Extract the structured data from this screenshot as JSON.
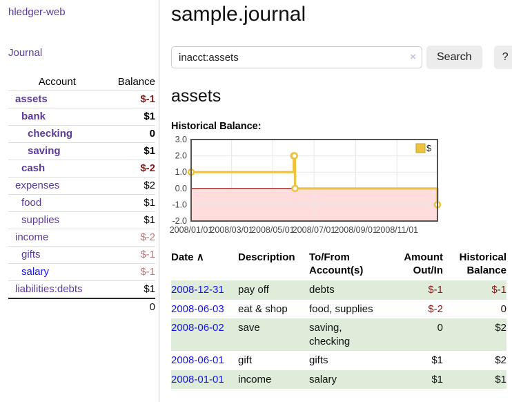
{
  "app": {
    "brand": "hledger-web",
    "nav_journal": "Journal"
  },
  "sidebar": {
    "columns": {
      "account": "Account",
      "balance": "Balance"
    },
    "accounts": [
      {
        "name": "assets",
        "depth": 1,
        "bold": true,
        "link_style": "purple",
        "balance": "$-1",
        "balance_style": "neg-strong"
      },
      {
        "name": "bank",
        "depth": 2,
        "bold": true,
        "link_style": "purple",
        "balance": "$1",
        "balance_style": ""
      },
      {
        "name": "checking",
        "depth": 3,
        "bold": true,
        "link_style": "purple",
        "balance": "0",
        "balance_style": ""
      },
      {
        "name": "saving",
        "depth": 3,
        "bold": true,
        "link_style": "purple",
        "balance": "$1",
        "balance_style": ""
      },
      {
        "name": "cash",
        "depth": 2,
        "bold": true,
        "link_style": "purple",
        "balance": "$-2",
        "balance_style": "neg-strong"
      },
      {
        "name": "expenses",
        "depth": 1,
        "bold": false,
        "link_style": "purple",
        "balance": "$2",
        "balance_style": ""
      },
      {
        "name": "food",
        "depth": 2,
        "bold": false,
        "link_style": "purple",
        "balance": "$1",
        "balance_style": ""
      },
      {
        "name": "supplies",
        "depth": 2,
        "bold": false,
        "link_style": "purple",
        "balance": "$1",
        "balance_style": ""
      },
      {
        "name": "income",
        "depth": 1,
        "bold": false,
        "link_style": "purple",
        "balance": "$-2",
        "balance_style": "neg-soft"
      },
      {
        "name": "gifts",
        "depth": 2,
        "bold": false,
        "link_style": "purple",
        "balance": "$-1",
        "balance_style": "neg-soft"
      },
      {
        "name": "salary",
        "depth": 2,
        "bold": false,
        "link_style": "blue",
        "balance": "$-1",
        "balance_style": "neg-soft"
      },
      {
        "name": "liabilities:debts",
        "depth": 1,
        "bold": false,
        "link_style": "purple",
        "balance": "$1",
        "balance_style": ""
      }
    ],
    "total": "0"
  },
  "header": {
    "title": "sample.journal"
  },
  "search": {
    "value": "inacct:assets",
    "clear_icon": "×",
    "search_label": "Search",
    "help_label": "?"
  },
  "account_page": {
    "title": "assets",
    "chart_label": "Historical Balance:"
  },
  "chart_data": {
    "type": "line",
    "step": true,
    "title": "Historical Balance:",
    "series": [
      {
        "name": "$",
        "color": "#edc240",
        "points": [
          [
            "2008-01-01",
            1
          ],
          [
            "2008-06-01",
            2
          ],
          [
            "2008-06-02",
            2
          ],
          [
            "2008-06-03",
            0
          ],
          [
            "2008-12-31",
            -1
          ]
        ]
      }
    ],
    "xlim": [
      "2008-01-01",
      "2008-12-31"
    ],
    "ylim": [
      -2,
      3
    ],
    "x_tick_labels": [
      "2008/01/01",
      "2008/03/01",
      "2008/05/01",
      "2008/07/01",
      "2008/09/01",
      "2008/11/01"
    ],
    "y_tick_labels": [
      "3.0",
      "2.0",
      "1.0",
      "0.0",
      "-1.0",
      "-2.0"
    ],
    "grid": true,
    "negative_region_fill": "#ffdddd",
    "zero_line_color": "#8b0000",
    "grid_color": "#e6e6e6",
    "border_color": "#545454",
    "legend": {
      "label": "$",
      "position": "top-right",
      "swatch_color": "#edc240"
    }
  },
  "register": {
    "headers": {
      "date": "Date",
      "sort_icon": "∧",
      "description": "Description",
      "account": "To/From\nAccount(s)",
      "amount": "Amount\nOut/In",
      "balance": "Historical\nBalance"
    },
    "rows": [
      {
        "date": "2008-12-31",
        "description": "pay off",
        "accounts": "debts",
        "amount": "$-1",
        "amount_neg": true,
        "balance": "$-1",
        "balance_neg": true,
        "striped": true
      },
      {
        "date": "2008-06-03",
        "description": "eat & shop",
        "accounts": "food, supplies",
        "amount": "$-2",
        "amount_neg": true,
        "balance": "0",
        "balance_neg": false,
        "striped": false
      },
      {
        "date": "2008-06-02",
        "description": "save",
        "accounts": "saving, checking",
        "amount": "0",
        "amount_neg": false,
        "balance": "$2",
        "balance_neg": false,
        "striped": true
      },
      {
        "date": "2008-06-01",
        "description": "gift",
        "accounts": "gifts",
        "amount": "$1",
        "amount_neg": false,
        "balance": "$2",
        "balance_neg": false,
        "striped": false
      },
      {
        "date": "2008-01-01",
        "description": "income",
        "accounts": "salary",
        "amount": "$1",
        "amount_neg": false,
        "balance": "$1",
        "balance_neg": false,
        "striped": true
      }
    ]
  },
  "colors": {
    "purple_link": "#5b3a9b",
    "blue_link": "#1414e6",
    "negative_strong": "#8b1a1a",
    "negative_soft": "#bb7676",
    "table_negative": "#871616",
    "stripe_green": "#dfecd9",
    "series_yellow": "#edc240"
  }
}
